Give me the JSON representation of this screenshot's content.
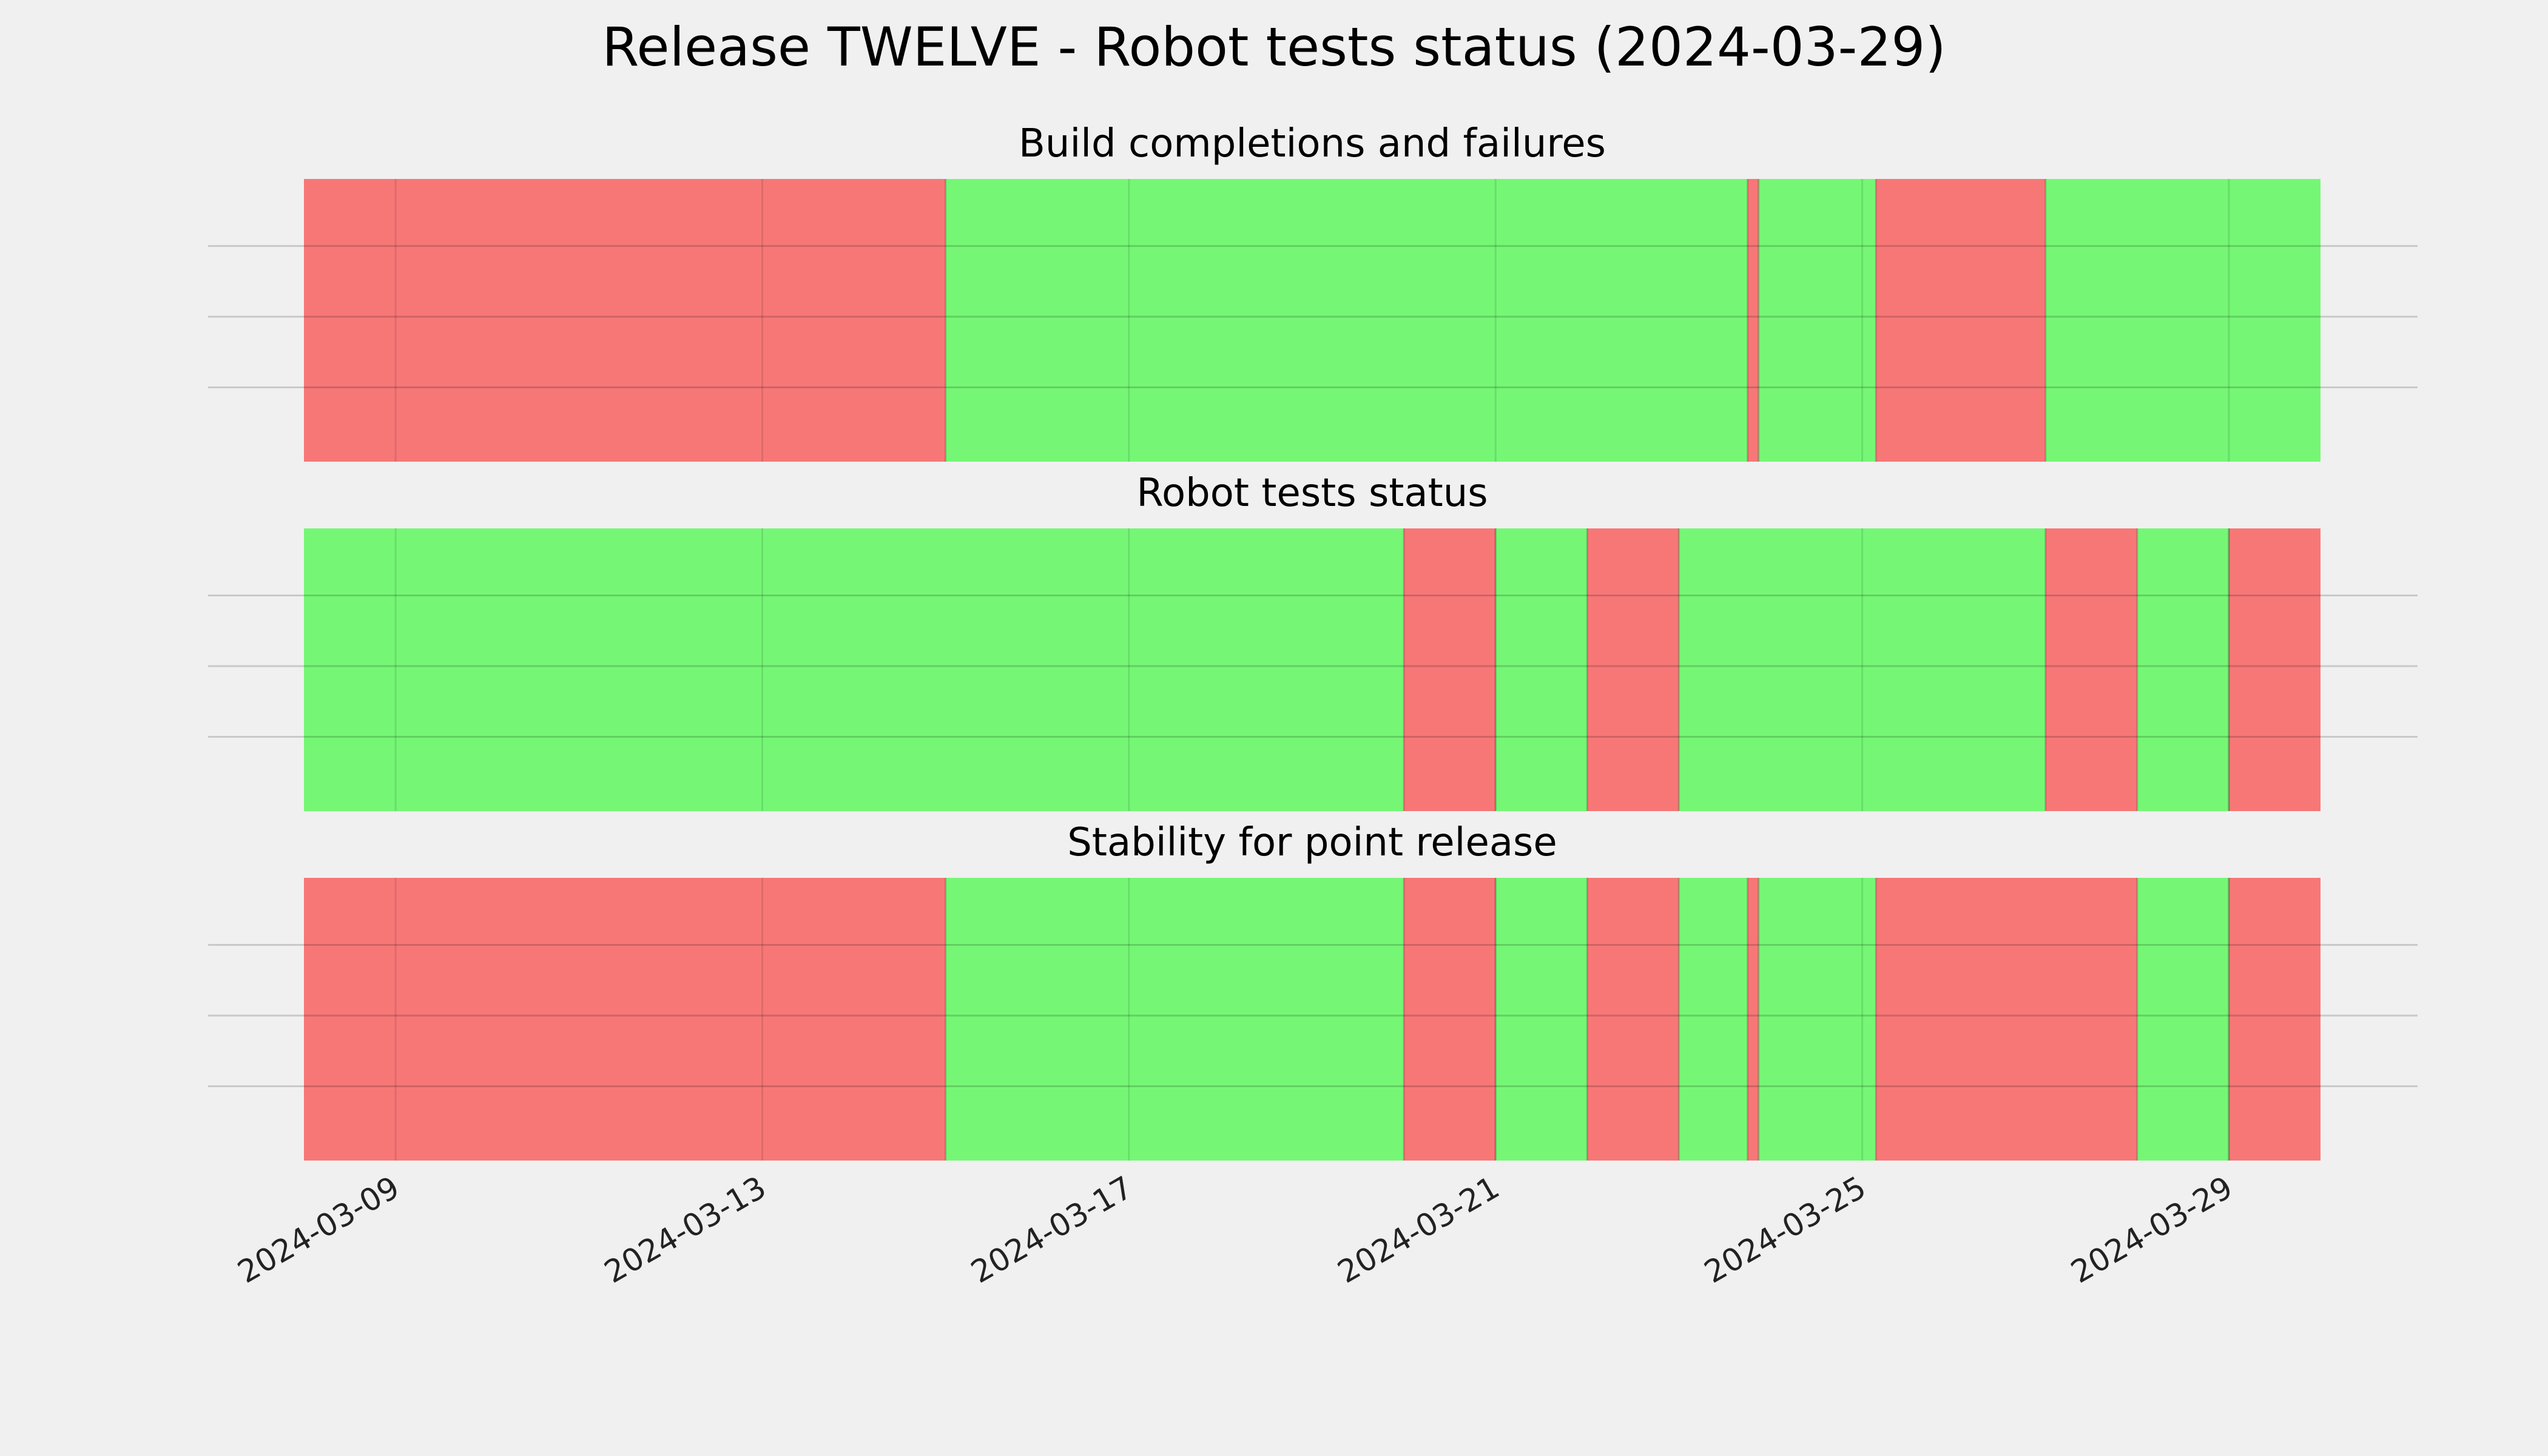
{
  "title": "Release TWELVE - Robot tests status (2024-03-29)",
  "colors": {
    "pass": "#75f775",
    "fail": "#f77777",
    "background": "#f0f0f0",
    "grid": "#cbcbcb"
  },
  "chart_data": {
    "type": "timeline",
    "xlim": [
      "2024-03-08",
      "2024-03-30"
    ],
    "x_ticks": [
      "2024-03-09",
      "2024-03-13",
      "2024-03-17",
      "2024-03-21",
      "2024-03-25",
      "2024-03-29"
    ],
    "grid": true,
    "panels": [
      {
        "title": "Build completions and failures",
        "segments": [
          {
            "start": "2024-03-08",
            "end": "2024-03-15",
            "status": "fail"
          },
          {
            "start": "2024-03-15",
            "end": "2024-03-23.75",
            "status": "pass"
          },
          {
            "start": "2024-03-23.75",
            "end": "2024-03-23.87",
            "status": "fail"
          },
          {
            "start": "2024-03-23.87",
            "end": "2024-03-25.15",
            "status": "pass"
          },
          {
            "start": "2024-03-25.15",
            "end": "2024-03-27",
            "status": "fail"
          },
          {
            "start": "2024-03-27",
            "end": "2024-03-30",
            "status": "pass"
          }
        ]
      },
      {
        "title": "Robot tests status",
        "segments": [
          {
            "start": "2024-03-08",
            "end": "2024-03-20",
            "status": "pass"
          },
          {
            "start": "2024-03-20",
            "end": "2024-03-21",
            "status": "fail"
          },
          {
            "start": "2024-03-21",
            "end": "2024-03-22",
            "status": "pass"
          },
          {
            "start": "2024-03-22",
            "end": "2024-03-23",
            "status": "fail"
          },
          {
            "start": "2024-03-23",
            "end": "2024-03-27",
            "status": "pass"
          },
          {
            "start": "2024-03-27",
            "end": "2024-03-28",
            "status": "fail"
          },
          {
            "start": "2024-03-28",
            "end": "2024-03-29",
            "status": "pass"
          },
          {
            "start": "2024-03-29",
            "end": "2024-03-30",
            "status": "fail"
          }
        ]
      },
      {
        "title": "Stability for point release",
        "segments": [
          {
            "start": "2024-03-08",
            "end": "2024-03-15",
            "status": "fail"
          },
          {
            "start": "2024-03-15",
            "end": "2024-03-20",
            "status": "pass"
          },
          {
            "start": "2024-03-20",
            "end": "2024-03-21",
            "status": "fail"
          },
          {
            "start": "2024-03-21",
            "end": "2024-03-22",
            "status": "pass"
          },
          {
            "start": "2024-03-22",
            "end": "2024-03-23",
            "status": "fail"
          },
          {
            "start": "2024-03-23",
            "end": "2024-03-23.75",
            "status": "pass"
          },
          {
            "start": "2024-03-23.75",
            "end": "2024-03-23.87",
            "status": "fail"
          },
          {
            "start": "2024-03-23.87",
            "end": "2024-03-25.15",
            "status": "pass"
          },
          {
            "start": "2024-03-25.15",
            "end": "2024-03-28",
            "status": "fail"
          },
          {
            "start": "2024-03-28",
            "end": "2024-03-29",
            "status": "pass"
          },
          {
            "start": "2024-03-29",
            "end": "2024-03-30",
            "status": "fail"
          }
        ]
      }
    ]
  }
}
